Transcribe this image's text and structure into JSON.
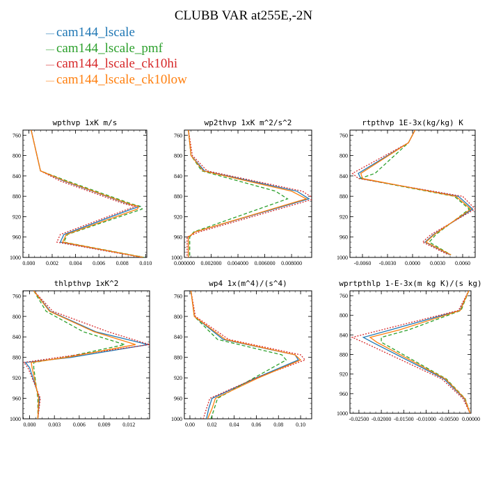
{
  "title": "CLUBB VAR at255E,-2N",
  "legend": [
    {
      "name": "cam144_lscale",
      "color": "#1f77b4"
    },
    {
      "name": "cam144_lscale_pmf",
      "color": "#2ca02c"
    },
    {
      "name": "cam144_lscale_ck10hi",
      "color": "#d62728"
    },
    {
      "name": "cam144_lscale_ck10low",
      "color": "#ff7f0e"
    }
  ],
  "chart_data": [
    {
      "type": "line",
      "title": "wpthvp   1xK m/s",
      "ylim": [
        1000,
        750
      ],
      "yticks": [
        760,
        800,
        840,
        880,
        920,
        960,
        1000
      ],
      "ytick_labels": [
        "760",
        "800",
        "840",
        "880",
        "920",
        "960",
        "1000"
      ],
      "xlim": [
        -0.0005,
        0.0101
      ],
      "xticks": [
        0.0,
        0.002,
        0.004,
        0.006,
        0.008,
        0.01
      ],
      "xtick_labels": [
        "0.000",
        "0.002",
        "0.004",
        "0.006",
        "0.008",
        "0.010"
      ],
      "y": [
        750,
        830,
        850,
        895,
        900,
        905,
        955,
        970,
        1000
      ],
      "series": [
        {
          "name": "cam144_lscale",
          "style": "solid",
          "x": [
            0.0002,
            0.001,
            0.003,
            0.0085,
            0.0095,
            0.0088,
            0.003,
            0.0027,
            0.0098
          ]
        },
        {
          "name": "cam144_lscale_pmf",
          "style": "dashed",
          "x": [
            0.0002,
            0.001,
            0.0033,
            0.0088,
            0.0096,
            0.0097,
            0.0033,
            0.003,
            0.0099
          ]
        },
        {
          "name": "cam144_lscale_ck10hi",
          "style": "dotted",
          "x": [
            0.0002,
            0.001,
            0.0027,
            0.0082,
            0.0091,
            0.0085,
            0.0027,
            0.0024,
            0.0097
          ]
        },
        {
          "name": "cam144_lscale_ck10low",
          "style": "solid",
          "x": [
            0.0002,
            0.001,
            0.0031,
            0.0086,
            0.0094,
            0.0093,
            0.0032,
            0.0029,
            0.0098
          ]
        }
      ]
    },
    {
      "type": "line",
      "title": "wp2thvp   1xK m^2/s^2",
      "ylim": [
        1000,
        750
      ],
      "yticks": [
        760,
        800,
        840,
        880,
        920,
        960,
        1000
      ],
      "ytick_labels": [
        "760",
        "800",
        "840",
        "880",
        "920",
        "960",
        "1000"
      ],
      "xlim": [
        0.0,
        0.0095
      ],
      "xticks": [
        0.0,
        0.002,
        0.004,
        0.006,
        0.008
      ],
      "xtick_labels": [
        "0.000000",
        "0.002000",
        "0.004000",
        "0.006000",
        "0.008000"
      ],
      "y": [
        750,
        800,
        830,
        870,
        885,
        950,
        960,
        1000
      ],
      "series": [
        {
          "name": "cam144_lscale",
          "style": "solid",
          "x": [
            0.0003,
            0.0005,
            0.0015,
            0.0084,
            0.0093,
            0.0008,
            0.0003,
            0.0003
          ]
        },
        {
          "name": "cam144_lscale_pmf",
          "style": "dashed",
          "x": [
            0.0003,
            0.0005,
            0.0013,
            0.0068,
            0.0077,
            0.0007,
            0.0004,
            0.0004
          ]
        },
        {
          "name": "cam144_lscale_ck10hi",
          "style": "dotted",
          "x": [
            0.0003,
            0.0006,
            0.0017,
            0.0088,
            0.0097,
            0.0011,
            0.0002,
            0.0002
          ]
        },
        {
          "name": "cam144_lscale_ck10low",
          "style": "solid",
          "x": [
            0.0003,
            0.0005,
            0.0014,
            0.008,
            0.0091,
            0.0008,
            0.0003,
            0.0003
          ]
        }
      ]
    },
    {
      "type": "line",
      "title": "rtpthvp   1E-3x(kg/kg) K",
      "ylim": [
        1000,
        750
      ],
      "yticks": [
        760,
        800,
        840,
        880,
        920,
        960,
        1000
      ],
      "ytick_labels": [
        "760",
        "800",
        "840",
        "880",
        "920",
        "960",
        "1000"
      ],
      "xlim": [
        -0.0075,
        0.0075
      ],
      "xticks": [
        -0.006,
        -0.003,
        0.0,
        0.003,
        0.006
      ],
      "xtick_labels": [
        "-0.0060",
        "-0.0030",
        "0.0000",
        "0.0030",
        "0.0060"
      ],
      "y": [
        750,
        775,
        835,
        845,
        880,
        905,
        955,
        970,
        995
      ],
      "series": [
        {
          "name": "cam144_lscale",
          "style": "solid",
          "x": [
            0.0003,
            -0.0005,
            -0.0065,
            -0.0062,
            0.0055,
            0.0072,
            0.0025,
            0.0015,
            0.0045
          ]
        },
        {
          "name": "cam144_lscale_pmf",
          "style": "dashed",
          "x": [
            0.0003,
            -0.0005,
            -0.0045,
            -0.0063,
            0.005,
            0.0068,
            0.0028,
            0.002,
            0.0046
          ]
        },
        {
          "name": "cam144_lscale_ck10hi",
          "style": "dotted",
          "x": [
            0.0003,
            -0.0005,
            -0.0072,
            -0.0065,
            0.006,
            0.0075,
            0.0022,
            0.0012,
            0.0043
          ]
        },
        {
          "name": "cam144_lscale_ck10low",
          "style": "solid",
          "x": [
            0.0003,
            -0.0005,
            -0.0062,
            -0.006,
            0.0052,
            0.007,
            0.0026,
            0.0016,
            0.0046
          ]
        }
      ]
    },
    {
      "type": "line",
      "title": "thlpthvp   1xK^2",
      "ylim": [
        1000,
        750
      ],
      "yticks": [
        760,
        800,
        840,
        880,
        920,
        960,
        1000
      ],
      "ytick_labels": [
        "760",
        "800",
        "840",
        "880",
        "920",
        "960",
        "1000"
      ],
      "xlim": [
        -0.0008,
        0.0145
      ],
      "xticks": [
        0.0,
        0.003,
        0.006,
        0.009,
        0.012
      ],
      "xtick_labels": [
        "0.000",
        "0.003",
        "0.006",
        "0.009",
        "0.012"
      ],
      "y": [
        750,
        790,
        830,
        855,
        880,
        890,
        900,
        960,
        1000
      ],
      "series": [
        {
          "name": "cam144_lscale",
          "style": "solid",
          "x": [
            0.0005,
            0.0025,
            0.008,
            0.0143,
            0.005,
            -0.0005,
            0.0,
            0.0012,
            0.001
          ]
        },
        {
          "name": "cam144_lscale_pmf",
          "style": "dashed",
          "x": [
            0.0005,
            0.002,
            0.0065,
            0.0115,
            0.0042,
            0.0005,
            0.0005,
            0.001,
            0.001
          ]
        },
        {
          "name": "cam144_lscale_ck10hi",
          "style": "dotted",
          "x": [
            0.0005,
            0.0028,
            0.0095,
            0.0145,
            0.0035,
            -0.0007,
            -0.0002,
            0.0013,
            0.001
          ]
        },
        {
          "name": "cam144_lscale_ck10low",
          "style": "solid",
          "x": [
            0.0005,
            0.0024,
            0.0078,
            0.0128,
            0.0045,
            0.0002,
            0.0003,
            0.0011,
            0.001
          ]
        }
      ]
    },
    {
      "type": "line",
      "title": "wp4   1x(m^4)/(s^4)",
      "ylim": [
        1000,
        750
      ],
      "yticks": [
        760,
        800,
        840,
        880,
        920,
        960,
        1000
      ],
      "ytick_labels": [
        "760",
        "800",
        "840",
        "880",
        "920",
        "960",
        "1000"
      ],
      "xlim": [
        -0.005,
        0.11
      ],
      "xticks": [
        0.0,
        0.02,
        0.04,
        0.06,
        0.08,
        0.1
      ],
      "xtick_labels": [
        "0.00",
        "0.02",
        "0.04",
        "0.06",
        "0.08",
        "0.10"
      ],
      "y": [
        750,
        800,
        845,
        875,
        885,
        920,
        960,
        980,
        1000
      ],
      "series": [
        {
          "name": "cam144_lscale",
          "style": "solid",
          "x": [
            0.001,
            0.004,
            0.03,
            0.095,
            0.098,
            0.06,
            0.02,
            0.017,
            0.015
          ]
        },
        {
          "name": "cam144_lscale_pmf",
          "style": "dashed",
          "x": [
            0.001,
            0.004,
            0.025,
            0.083,
            0.087,
            0.058,
            0.025,
            0.022,
            0.019
          ]
        },
        {
          "name": "cam144_lscale_ck10hi",
          "style": "dotted",
          "x": [
            0.001,
            0.005,
            0.035,
            0.1,
            0.104,
            0.06,
            0.018,
            0.015,
            0.012
          ]
        },
        {
          "name": "cam144_lscale_ck10low",
          "style": "solid",
          "x": [
            0.001,
            0.004,
            0.032,
            0.095,
            0.1,
            0.062,
            0.023,
            0.02,
            0.016
          ]
        }
      ]
    },
    {
      "type": "line",
      "title": "wprtpthlp   1-E-3x(m kg K)/(s kg)",
      "ylim": [
        1000,
        750
      ],
      "yticks": [
        760,
        800,
        840,
        880,
        920,
        960,
        1000
      ],
      "ytick_labels": [
        "760",
        "800",
        "840",
        "880",
        "920",
        "960",
        "1000"
      ],
      "xlim": [
        -0.027,
        0.0
      ],
      "xticks": [
        -0.025,
        -0.02,
        -0.015,
        -0.01,
        -0.005,
        0.0
      ],
      "xtick_labels": [
        "-0.02500",
        "-0.02000",
        "-0.01500",
        "-0.01000",
        "-0.00500",
        "0.00000"
      ],
      "y": [
        750,
        790,
        830,
        845,
        855,
        930,
        970,
        1000
      ],
      "series": [
        {
          "name": "cam144_lscale",
          "style": "solid",
          "x": [
            -0.0005,
            -0.0025,
            -0.018,
            -0.024,
            -0.022,
            -0.006,
            -0.0015,
            -0.0002
          ]
        },
        {
          "name": "cam144_lscale_pmf",
          "style": "dashed",
          "x": [
            -0.0005,
            -0.0022,
            -0.014,
            -0.02,
            -0.02,
            -0.0055,
            -0.0013,
            -0.0002
          ]
        },
        {
          "name": "cam144_lscale_ck10hi",
          "style": "dotted",
          "x": [
            -0.0005,
            -0.0028,
            -0.02,
            -0.0265,
            -0.024,
            -0.0065,
            -0.0018,
            -0.0002
          ]
        },
        {
          "name": "cam144_lscale_ck10low",
          "style": "solid",
          "x": [
            -0.0005,
            -0.0024,
            -0.016,
            -0.0225,
            -0.021,
            -0.0057,
            -0.0014,
            -0.0002
          ]
        }
      ]
    }
  ]
}
